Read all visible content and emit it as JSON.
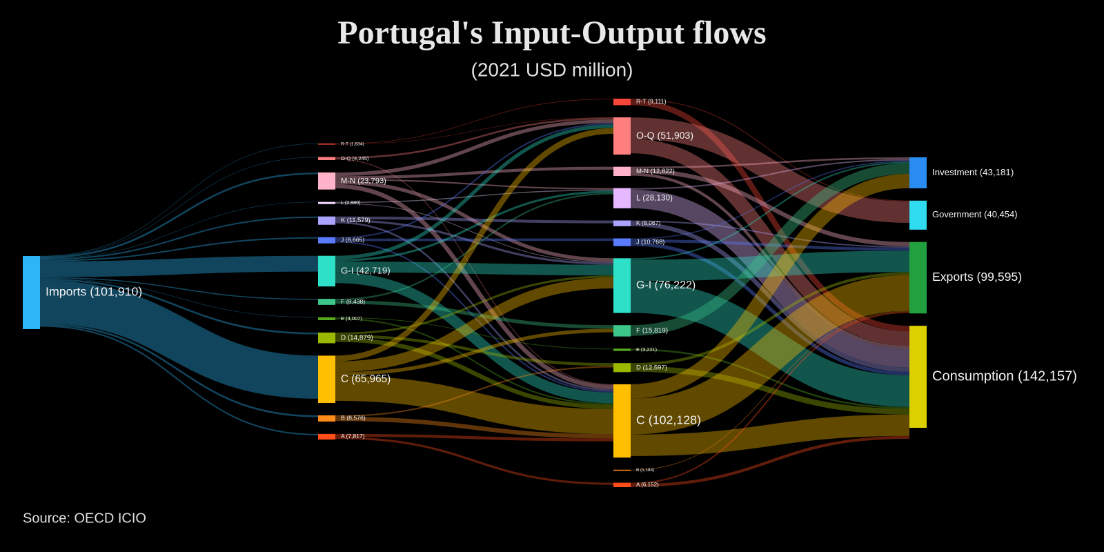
{
  "chart_data": {
    "type": "sankey",
    "title": "Portugal's Input-Output flows",
    "subtitle": "(2021 USD million)",
    "source": "Source: OECD ICIO",
    "nodes": [
      {
        "label": "Imports (101,910)",
        "value": 101910,
        "column": 0,
        "color": "#2db5f7"
      },
      {
        "label": "R-T (1,534)",
        "value": 1534,
        "column": 1,
        "color": "#f8473a"
      },
      {
        "label": "O-Q (4,245)",
        "value": 4245,
        "column": 1,
        "color": "#ff7f7f"
      },
      {
        "label": "M-N (23,793)",
        "value": 23793,
        "column": 1,
        "color": "#ffb2c8"
      },
      {
        "label": "L (2,980)",
        "value": 2980,
        "column": 1,
        "color": "#f0d8ff"
      },
      {
        "label": "K (11,579)",
        "value": 11579,
        "column": 1,
        "color": "#a9a2ff"
      },
      {
        "label": "J (8,665)",
        "value": 8665,
        "column": 1,
        "color": "#5a7bff"
      },
      {
        "label": "G-I (42,719)",
        "value": 42719,
        "column": 1,
        "color": "#2ee0c8"
      },
      {
        "label": "F (8,438)",
        "value": 8438,
        "column": 1,
        "color": "#3cc68a"
      },
      {
        "label": "E (4,007)",
        "value": 4007,
        "column": 1,
        "color": "#56a81f"
      },
      {
        "label": "D (14,879)",
        "value": 14879,
        "column": 1,
        "color": "#9ab800"
      },
      {
        "label": "C (65,965)",
        "value": 65965,
        "column": 1,
        "color": "#ffbf00"
      },
      {
        "label": "B (8,576)",
        "value": 8576,
        "column": 1,
        "color": "#ff8c1a"
      },
      {
        "label": "A (7,817)",
        "value": 7817,
        "column": 1,
        "color": "#ff4d1a"
      },
      {
        "label": "R-T (9,111)",
        "value": 9111,
        "column": 2,
        "color": "#f8473a"
      },
      {
        "label": "O-Q (51,903)",
        "value": 51903,
        "column": 2,
        "color": "#ff7f7f"
      },
      {
        "label": "M-N (12,822)",
        "value": 12822,
        "column": 2,
        "color": "#ffb2c8"
      },
      {
        "label": "L (28,130)",
        "value": 28130,
        "column": 2,
        "color": "#e6b8ff"
      },
      {
        "label": "K (8,067)",
        "value": 8067,
        "column": 2,
        "color": "#a9a2ff"
      },
      {
        "label": "J (10,768)",
        "value": 10768,
        "column": 2,
        "color": "#5a7bff"
      },
      {
        "label": "G-I (76,222)",
        "value": 76222,
        "column": 2,
        "color": "#2ee0c8"
      },
      {
        "label": "F (15,819)",
        "value": 15819,
        "column": 2,
        "color": "#3cc68a"
      },
      {
        "label": "E (3,221)",
        "value": 3221,
        "column": 2,
        "color": "#56a81f"
      },
      {
        "label": "D (12,597)",
        "value": 12597,
        "column": 2,
        "color": "#9ab800"
      },
      {
        "label": "C (102,128)",
        "value": 102128,
        "column": 2,
        "color": "#ffbf00"
      },
      {
        "label": "B (1,184)",
        "value": 1184,
        "column": 2,
        "color": "#ff8c1a"
      },
      {
        "label": "A (6,152)",
        "value": 6152,
        "column": 2,
        "color": "#ff4d1a"
      },
      {
        "label": "Investment (43,181)",
        "value": 43181,
        "column": 3,
        "color": "#2a8cf0"
      },
      {
        "label": "Government (40,454)",
        "value": 40454,
        "column": 3,
        "color": "#2fdcf0"
      },
      {
        "label": "Exports (99,595)",
        "value": 99595,
        "column": 3,
        "color": "#22a040"
      },
      {
        "label": "Consumption (142,157)",
        "value": 142157,
        "column": 3,
        "color": "#ddd000"
      }
    ],
    "links": [
      {
        "source": 0,
        "target": 1,
        "value": 300
      },
      {
        "source": 0,
        "target": 2,
        "value": 500
      },
      {
        "source": 0,
        "target": 3,
        "value": 2500
      },
      {
        "source": 0,
        "target": 4,
        "value": 200
      },
      {
        "source": 0,
        "target": 5,
        "value": 2000
      },
      {
        "source": 0,
        "target": 6,
        "value": 2000
      },
      {
        "source": 0,
        "target": 7,
        "value": 22000
      },
      {
        "source": 0,
        "target": 8,
        "value": 1500
      },
      {
        "source": 0,
        "target": 9,
        "value": 500
      },
      {
        "source": 0,
        "target": 10,
        "value": 2500
      },
      {
        "source": 0,
        "target": 11,
        "value": 60000
      },
      {
        "source": 0,
        "target": 12,
        "value": 2500
      },
      {
        "source": 0,
        "target": 13,
        "value": 2000
      },
      {
        "source": 1,
        "target": 14,
        "value": 800
      },
      {
        "source": 1,
        "target": 15,
        "value": 400
      },
      {
        "source": 2,
        "target": 15,
        "value": 2500
      },
      {
        "source": 2,
        "target": 24,
        "value": 1000
      },
      {
        "source": 3,
        "target": 15,
        "value": 5000
      },
      {
        "source": 3,
        "target": 16,
        "value": 4000
      },
      {
        "source": 3,
        "target": 17,
        "value": 2000
      },
      {
        "source": 3,
        "target": 20,
        "value": 5000
      },
      {
        "source": 3,
        "target": 24,
        "value": 6000
      },
      {
        "source": 4,
        "target": 17,
        "value": 1500
      },
      {
        "source": 4,
        "target": 20,
        "value": 1000
      },
      {
        "source": 5,
        "target": 18,
        "value": 4000
      },
      {
        "source": 5,
        "target": 20,
        "value": 3000
      },
      {
        "source": 5,
        "target": 24,
        "value": 2500
      },
      {
        "source": 6,
        "target": 15,
        "value": 2000
      },
      {
        "source": 6,
        "target": 19,
        "value": 3500
      },
      {
        "source": 6,
        "target": 24,
        "value": 2000
      },
      {
        "source": 7,
        "target": 15,
        "value": 5000
      },
      {
        "source": 7,
        "target": 17,
        "value": 3000
      },
      {
        "source": 7,
        "target": 20,
        "value": 15000
      },
      {
        "source": 7,
        "target": 24,
        "value": 15000
      },
      {
        "source": 8,
        "target": 17,
        "value": 2000
      },
      {
        "source": 8,
        "target": 21,
        "value": 5000
      },
      {
        "source": 9,
        "target": 22,
        "value": 1000
      },
      {
        "source": 9,
        "target": 24,
        "value": 2000
      },
      {
        "source": 10,
        "target": 20,
        "value": 3000
      },
      {
        "source": 10,
        "target": 23,
        "value": 4000
      },
      {
        "source": 10,
        "target": 24,
        "value": 6000
      },
      {
        "source": 11,
        "target": 15,
        "value": 8000
      },
      {
        "source": 11,
        "target": 20,
        "value": 15000
      },
      {
        "source": 11,
        "target": 21,
        "value": 5000
      },
      {
        "source": 11,
        "target": 24,
        "value": 35000
      },
      {
        "source": 12,
        "target": 23,
        "value": 2000
      },
      {
        "source": 12,
        "target": 24,
        "value": 6000
      },
      {
        "source": 13,
        "target": 24,
        "value": 4000
      },
      {
        "source": 13,
        "target": 26,
        "value": 3000
      },
      {
        "source": 14,
        "target": 28,
        "value": 1000
      },
      {
        "source": 14,
        "target": 30,
        "value": 8000
      },
      {
        "source": 15,
        "target": 28,
        "value": 30000
      },
      {
        "source": 15,
        "target": 30,
        "value": 20000
      },
      {
        "source": 16,
        "target": 27,
        "value": 2500
      },
      {
        "source": 16,
        "target": 29,
        "value": 6000
      },
      {
        "source": 16,
        "target": 30,
        "value": 4000
      },
      {
        "source": 17,
        "target": 27,
        "value": 2000
      },
      {
        "source": 17,
        "target": 30,
        "value": 26000
      },
      {
        "source": 18,
        "target": 29,
        "value": 2000
      },
      {
        "source": 18,
        "target": 30,
        "value": 6000
      },
      {
        "source": 19,
        "target": 27,
        "value": 1500
      },
      {
        "source": 19,
        "target": 29,
        "value": 4000
      },
      {
        "source": 19,
        "target": 30,
        "value": 5000
      },
      {
        "source": 20,
        "target": 27,
        "value": 2000
      },
      {
        "source": 20,
        "target": 29,
        "value": 30000
      },
      {
        "source": 20,
        "target": 30,
        "value": 44000
      },
      {
        "source": 21,
        "target": 27,
        "value": 15000
      },
      {
        "source": 22,
        "target": 30,
        "value": 2500
      },
      {
        "source": 23,
        "target": 29,
        "value": 4000
      },
      {
        "source": 23,
        "target": 30,
        "value": 8000
      },
      {
        "source": 24,
        "target": 27,
        "value": 20000
      },
      {
        "source": 24,
        "target": 29,
        "value": 50000
      },
      {
        "source": 24,
        "target": 30,
        "value": 30000
      },
      {
        "source": 25,
        "target": 29,
        "value": 1000
      },
      {
        "source": 26,
        "target": 29,
        "value": 2000
      },
      {
        "source": 26,
        "target": 30,
        "value": 4000
      }
    ]
  }
}
